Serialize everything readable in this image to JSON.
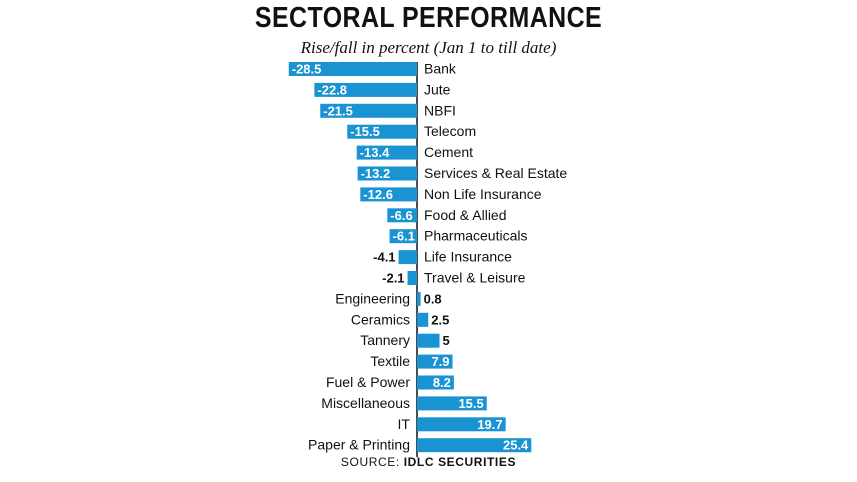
{
  "chart_data": {
    "type": "bar",
    "orientation": "horizontal",
    "title": "SECTORAL PERFORMANCE",
    "subtitle": "Rise/fall in percent (Jan 1 to till date)",
    "source_label": "SOURCE:",
    "source_name": "IDLC SECURITIES",
    "categories": [
      "Bank",
      "Jute",
      "NBFI",
      "Telecom",
      "Cement",
      "Services & Real Estate",
      "Non Life Insurance",
      "Food & Allied",
      "Pharmaceuticals",
      "Life Insurance",
      "Travel & Leisure",
      "Engineering",
      "Ceramics",
      "Tannery",
      "Textile",
      "Fuel & Power",
      "Miscellaneous",
      "IT",
      "Paper & Printing"
    ],
    "values": [
      -28.5,
      -22.8,
      -21.5,
      -15.5,
      -13.4,
      -13.2,
      -12.6,
      -6.6,
      -6.1,
      -4.1,
      -2.1,
      0.8,
      2.5,
      5,
      7.9,
      8.2,
      15.5,
      19.7,
      25.4
    ],
    "value_labels": [
      "-28.5",
      "-22.8",
      "-21.5",
      "-15.5",
      "-13.4",
      "-13.2",
      "-12.6",
      "-6.6",
      "-6.1",
      "-4.1",
      "-2.1",
      "0.8",
      "2.5",
      "5",
      "7.9",
      "8.2",
      "15.5",
      "19.7",
      "25.4"
    ],
    "xlabel": "",
    "ylabel": "",
    "bar_color": "#1a93d3",
    "axis_color": "#111111"
  }
}
